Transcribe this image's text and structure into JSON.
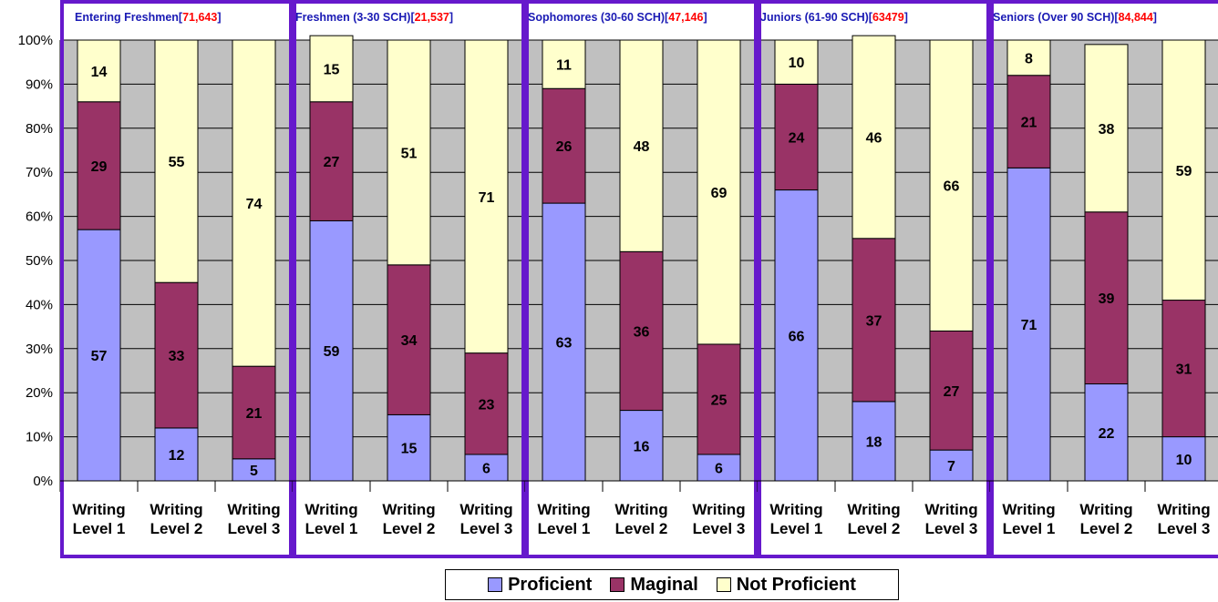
{
  "chart_data": {
    "type": "bar",
    "stacked": true,
    "percent_stacked": true,
    "ylim": [
      0,
      100
    ],
    "yticks": [
      "0%",
      "10%",
      "20%",
      "30%",
      "40%",
      "50%",
      "60%",
      "70%",
      "80%",
      "90%",
      "100%"
    ],
    "grid": true,
    "legend_position": "bottom",
    "category_labels": [
      [
        "Writing",
        "Level 1"
      ],
      [
        "Writing",
        "Level 2"
      ],
      [
        "Writing",
        "Level 3"
      ]
    ],
    "colors": {
      "Proficient": "#9999ff",
      "Maginal": "#993366",
      "Not Proficient": "#ffffcc",
      "plot_bg": "#c0c0c0",
      "group_border": "#6619cc"
    },
    "legend": [
      "Proficient",
      "Maginal",
      "Not Proficient"
    ],
    "groups": [
      {
        "title": "Entering Freshmen",
        "count": "71,643",
        "series": {
          "Proficient": [
            57,
            12,
            5
          ],
          "Maginal": [
            29,
            33,
            21
          ],
          "Not Proficient": [
            14,
            55,
            74
          ]
        }
      },
      {
        "title": "Freshmen (3-30 SCH)",
        "count": "21,537",
        "series": {
          "Proficient": [
            59,
            15,
            6
          ],
          "Maginal": [
            27,
            34,
            23
          ],
          "Not Proficient": [
            15,
            51,
            71
          ]
        }
      },
      {
        "title": "Sophomores (30-60 SCH)",
        "count": "47,146",
        "series": {
          "Proficient": [
            63,
            16,
            6
          ],
          "Maginal": [
            26,
            36,
            25
          ],
          "Not Proficient": [
            11,
            48,
            69
          ]
        }
      },
      {
        "title": "Juniors (61-90 SCH)",
        "count": "63479",
        "series": {
          "Proficient": [
            66,
            18,
            7
          ],
          "Maginal": [
            24,
            37,
            27
          ],
          "Not Proficient": [
            10,
            46,
            66
          ]
        }
      },
      {
        "title": "Seniors (Over 90 SCH)",
        "count": "84,844",
        "series": {
          "Proficient": [
            71,
            22,
            10
          ],
          "Maginal": [
            21,
            39,
            31
          ],
          "Not Proficient": [
            8,
            38,
            59
          ]
        }
      }
    ]
  }
}
